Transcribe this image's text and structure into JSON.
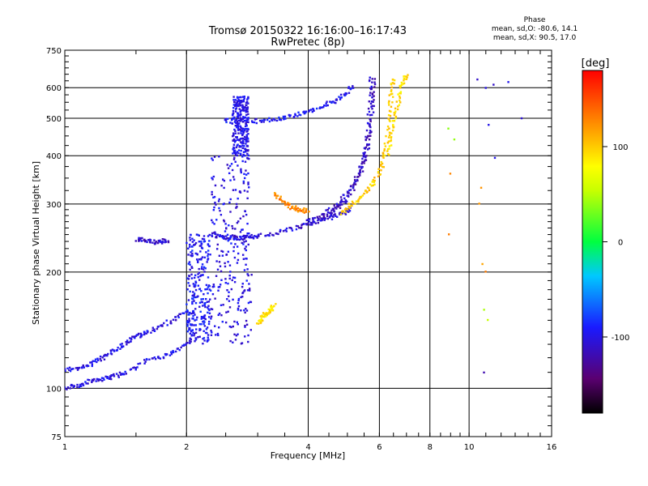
{
  "chart_data": {
    "type": "scatter",
    "title": "Tromsø 20150322 16:16:00–16:17:43",
    "subtitle": "RwPretec (8p)",
    "xlabel": "Frequency [MHz]",
    "ylabel": "Stationary phase Virtual Height [km]",
    "x_scale": "log",
    "y_scale": "log",
    "xlim": [
      1,
      16
    ],
    "ylim": [
      75,
      750
    ],
    "x_ticks": [
      1,
      2,
      4,
      6,
      8,
      10,
      16
    ],
    "x_tick_labels": [
      "1",
      "2",
      "4",
      "6",
      "8",
      "10",
      "16"
    ],
    "y_ticks": [
      75,
      100,
      200,
      300,
      400,
      500,
      600,
      750
    ],
    "y_tick_labels": [
      "75",
      "100",
      "200",
      "300",
      "400",
      "500",
      "600",
      "750"
    ],
    "grid": true,
    "colorbar": {
      "label": "[deg]",
      "range": [
        -180,
        180
      ],
      "ticks": [
        -100,
        0,
        100
      ],
      "tick_labels": [
        "-100",
        "0",
        "100"
      ]
    },
    "phase_summary": {
      "title": "Phase",
      "line_o": "mean, sd,O: -80.6, 14.1",
      "line_x": "mean, sd,X: 90.5, 17.0"
    },
    "traces": [
      {
        "name": "",
        "phase": -100,
        "x": [
          1.0,
          1.05,
          1.1,
          1.15,
          1.2,
          1.25,
          1.3,
          1.35,
          1.4,
          1.45,
          1.5,
          1.55,
          1.6,
          1.7,
          1.8,
          1.9,
          2.0
        ],
        "y": [
          112,
          112,
          113,
          115,
          118,
          120,
          123,
          127,
          130,
          133,
          136,
          138,
          140,
          143,
          148,
          152,
          158
        ]
      },
      {
        "name": "",
        "phase": -100,
        "x": [
          1.0,
          1.05,
          1.1,
          1.15,
          1.2,
          1.25,
          1.3,
          1.35,
          1.4,
          1.5,
          1.6,
          1.7,
          1.8,
          1.9,
          2.0,
          2.1
        ],
        "y": [
          100,
          101,
          102,
          104,
          105,
          106,
          107,
          108,
          110,
          113,
          118,
          120,
          122,
          126,
          130,
          134
        ]
      },
      {
        "name": "",
        "phase": -110,
        "x": [
          1.5,
          1.55,
          1.6,
          1.65,
          1.7,
          1.75,
          1.8
        ],
        "y": [
          242,
          243,
          242,
          240,
          238,
          240,
          242
        ]
      },
      {
        "name": "",
        "phase": -105,
        "x": [
          2.3,
          2.4,
          2.5,
          2.6,
          2.7,
          2.8,
          2.9,
          3.0,
          3.2,
          3.4,
          3.6,
          3.8,
          4.0,
          4.2,
          4.4,
          4.6,
          4.8,
          5.0,
          5.1
        ],
        "y": [
          250,
          248,
          246,
          246,
          245,
          246,
          247,
          248,
          250,
          253,
          257,
          262,
          266,
          270,
          274,
          278,
          282,
          288,
          292
        ]
      },
      {
        "name": "",
        "phase": -110,
        "x": [
          4.0,
          4.2,
          4.4,
          4.6,
          4.8,
          5.0,
          5.2,
          5.4,
          5.5,
          5.6,
          5.65,
          5.7,
          5.72,
          5.74
        ],
        "y": [
          270,
          275,
          282,
          292,
          305,
          320,
          340,
          370,
          400,
          440,
          480,
          540,
          600,
          640
        ]
      },
      {
        "name": "",
        "phase": -115,
        "x": [
          4.4,
          4.6,
          4.8,
          5.0,
          5.2,
          5.4,
          5.5,
          5.6,
          5.7,
          5.75,
          5.78,
          5.8
        ],
        "y": [
          278,
          285,
          296,
          310,
          330,
          360,
          385,
          420,
          470,
          520,
          580,
          640
        ]
      },
      {
        "name": "",
        "phase": -95,
        "x": [
          2.5,
          2.6,
          2.8,
          3.0,
          3.2,
          3.4,
          3.6,
          3.8,
          4.0,
          4.2,
          4.4,
          4.6,
          4.8,
          5.0,
          5.2
        ],
        "y": [
          495,
          490,
          488,
          492,
          496,
          500,
          505,
          512,
          520,
          530,
          540,
          552,
          565,
          585,
          610
        ]
      },
      {
        "name": "",
        "phase": 100,
        "x": [
          4.8,
          5.0,
          5.2,
          5.4,
          5.6,
          5.8,
          6.0,
          6.1,
          6.2,
          6.3,
          6.35,
          6.4,
          6.45,
          6.5
        ],
        "y": [
          285,
          292,
          302,
          312,
          325,
          340,
          360,
          380,
          410,
          450,
          500,
          550,
          600,
          640
        ]
      },
      {
        "name": "",
        "phase": 90,
        "x": [
          6.3,
          6.4,
          6.5,
          6.6,
          6.7,
          6.8,
          6.9,
          7.0
        ],
        "y": [
          400,
          440,
          480,
          520,
          560,
          600,
          630,
          645
        ]
      },
      {
        "name": "",
        "phase": 130,
        "x": [
          3.3,
          3.4,
          3.5,
          3.6,
          3.7,
          3.8,
          3.9,
          4.0
        ],
        "y": [
          320,
          310,
          302,
          296,
          292,
          290,
          288,
          290
        ]
      },
      {
        "name": "",
        "phase": 90,
        "x": [
          3.0,
          3.05,
          3.1,
          3.15,
          3.2,
          3.25,
          3.3
        ],
        "y": [
          148,
          150,
          153,
          156,
          158,
          160,
          165
        ]
      }
    ],
    "columns": [
      {
        "name": "",
        "phase": -100,
        "x_range": [
          2.3,
          2.9
        ],
        "y_range": [
          130,
          400
        ]
      },
      {
        "name": "",
        "phase": -95,
        "x_range": [
          2.0,
          2.3
        ],
        "y_range": [
          130,
          250
        ]
      },
      {
        "name": "",
        "phase": -100,
        "x_range": [
          2.6,
          2.85
        ],
        "y_range": [
          400,
          570
        ]
      }
    ],
    "scattered": [
      {
        "phase": -110,
        "x": [
          10.5,
          11.0,
          11.5,
          12.5,
          13.5,
          11.2,
          10.9,
          11.6
        ],
        "y": [
          630,
          600,
          610,
          620,
          500,
          480,
          110,
          395
        ]
      },
      {
        "phase": 120,
        "x": [
          10.6,
          10.8,
          11.0,
          10.7,
          9.0,
          8.9
        ],
        "y": [
          300,
          210,
          200,
          330,
          360,
          250
        ]
      },
      {
        "phase": 50,
        "x": [
          10.9,
          11.1,
          8.9,
          9.2
        ],
        "y": [
          160,
          150,
          470,
          440
        ]
      }
    ]
  }
}
